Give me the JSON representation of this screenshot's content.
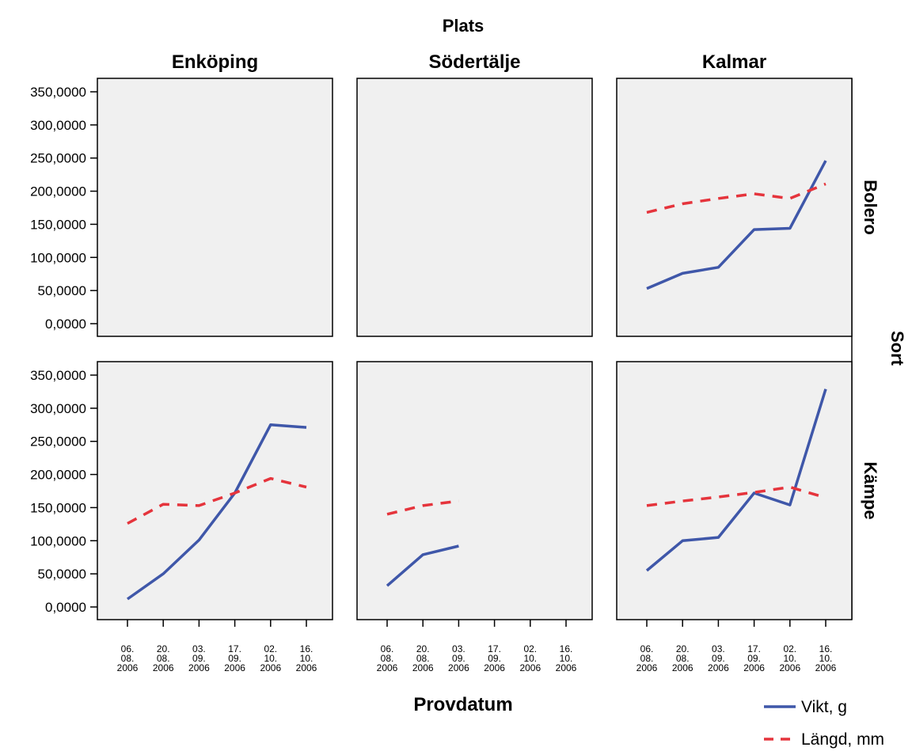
{
  "chart_data": {
    "type": "line",
    "facet_column_title": "Plats",
    "facet_row_title": "Sort",
    "columns": [
      "Enköping",
      "Södertälje",
      "Kalmar"
    ],
    "rows": [
      "Bolero",
      "Kämpe"
    ],
    "xlabel": "Provdatum",
    "x": [
      "06.08.2006",
      "20.08.2006",
      "03.09.2006",
      "17.09.2006",
      "02.10.2006",
      "16.10.2006"
    ],
    "x_tick_lines": [
      [
        "06.",
        "08.",
        "2006"
      ],
      [
        "20.",
        "08.",
        "2006"
      ],
      [
        "03.",
        "09.",
        "2006"
      ],
      [
        "17.",
        "09.",
        "2006"
      ],
      [
        "02.",
        "10.",
        "2006"
      ],
      [
        "16.",
        "10.",
        "2006"
      ]
    ],
    "ylim": [
      0,
      350
    ],
    "y_ticks": [
      0,
      50,
      100,
      150,
      200,
      250,
      300,
      350
    ],
    "y_tick_labels": [
      "0,0000",
      "50,0000",
      "100,0000",
      "150,0000",
      "200,0000",
      "250,0000",
      "300,0000",
      "350,0000"
    ],
    "grid": false,
    "legend_position": "bottom-right",
    "series_styles": [
      {
        "name": "Vikt, g",
        "color": "#3f57a9",
        "dash": "solid"
      },
      {
        "name": "Längd, mm",
        "color": "#e5343c",
        "dash": "dashed"
      }
    ],
    "panels": [
      {
        "row": "Bolero",
        "column": "Enköping",
        "series": [
          {
            "name": "Vikt, g",
            "values": [
              null,
              null,
              null,
              null,
              null,
              null
            ]
          },
          {
            "name": "Längd, mm",
            "values": [
              null,
              null,
              null,
              null,
              null,
              null
            ]
          }
        ]
      },
      {
        "row": "Bolero",
        "column": "Södertälje",
        "series": [
          {
            "name": "Vikt, g",
            "values": [
              null,
              null,
              null,
              null,
              null,
              null
            ]
          },
          {
            "name": "Längd, mm",
            "values": [
              null,
              null,
              null,
              null,
              null,
              null
            ]
          }
        ]
      },
      {
        "row": "Bolero",
        "column": "Kalmar",
        "series": [
          {
            "name": "Vikt, g",
            "values": [
              53,
              76,
              85,
              142,
              144,
              246
            ]
          },
          {
            "name": "Längd, mm",
            "values": [
              168,
              181,
              189,
              196,
              189,
              211
            ]
          }
        ]
      },
      {
        "row": "Kämpe",
        "column": "Enköping",
        "series": [
          {
            "name": "Vikt, g",
            "values": [
              12,
              50,
              101,
              172,
              275,
              271
            ]
          },
          {
            "name": "Längd, mm",
            "values": [
              126,
              155,
              153,
              172,
              194,
              181
            ]
          }
        ]
      },
      {
        "row": "Kämpe",
        "column": "Södertälje",
        "series": [
          {
            "name": "Vikt, g",
            "values": [
              32,
              79,
              92,
              null,
              null,
              null
            ]
          },
          {
            "name": "Längd, mm",
            "values": [
              140,
              153,
              160,
              null,
              null,
              null
            ]
          }
        ]
      },
      {
        "row": "Kämpe",
        "column": "Kalmar",
        "series": [
          {
            "name": "Vikt, g",
            "values": [
              55,
              100,
              105,
              172,
              154,
              329
            ]
          },
          {
            "name": "Längd, mm",
            "values": [
              153,
              160,
              166,
              173,
              181,
              165
            ]
          }
        ]
      }
    ]
  }
}
